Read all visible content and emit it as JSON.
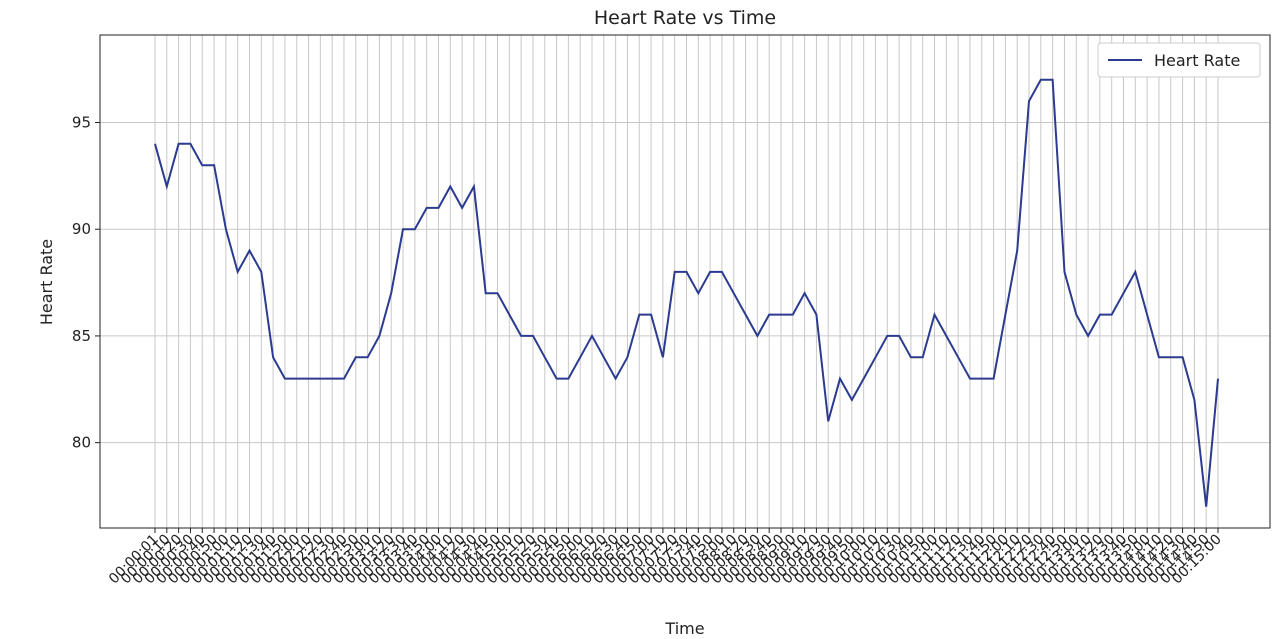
{
  "chart_data": {
    "type": "line",
    "title": "Heart Rate vs Time",
    "xlabel": "Time",
    "ylabel": "Heart Rate",
    "categories": [
      "00:00:01",
      "00:00:10",
      "00:00:20",
      "00:00:30",
      "00:00:40",
      "00:00:50",
      "00:01:00",
      "00:01:10",
      "00:01:20",
      "00:01:30",
      "00:01:40",
      "00:01:50",
      "00:02:00",
      "00:02:10",
      "00:02:20",
      "00:02:30",
      "00:02:40",
      "00:02:50",
      "00:03:00",
      "00:03:10",
      "00:03:20",
      "00:03:30",
      "00:03:40",
      "00:03:50",
      "00:04:00",
      "00:04:10",
      "00:04:20",
      "00:04:30",
      "00:04:40",
      "00:04:50",
      "00:05:00",
      "00:05:10",
      "00:05:20",
      "00:05:30",
      "00:05:40",
      "00:05:50",
      "00:06:00",
      "00:06:10",
      "00:06:20",
      "00:06:30",
      "00:06:40",
      "00:06:50",
      "00:07:00",
      "00:07:10",
      "00:07:20",
      "00:07:30",
      "00:07:40",
      "00:07:50",
      "00:08:00",
      "00:08:10",
      "00:08:20",
      "00:08:30",
      "00:08:40",
      "00:08:50",
      "00:09:00",
      "00:09:10",
      "00:09:20",
      "00:09:30",
      "00:09:40",
      "00:09:50",
      "00:10:00",
      "00:10:10",
      "00:10:20",
      "00:10:30",
      "00:10:40",
      "00:10:50",
      "00:11:00",
      "00:11:10",
      "00:11:20",
      "00:11:30",
      "00:11:40",
      "00:11:50",
      "00:12:00",
      "00:12:10",
      "00:12:20",
      "00:12:30",
      "00:12:40",
      "00:12:50",
      "00:13:00",
      "00:13:10",
      "00:13:20",
      "00:13:30",
      "00:13:40",
      "00:13:50",
      "00:14:00",
      "00:14:10",
      "00:14:20",
      "00:14:30",
      "00:14:40",
      "00:14:50",
      "00:15:00"
    ],
    "series": [
      {
        "name": "Heart Rate",
        "color": "#2b3b8f",
        "values": [
          94,
          92,
          94,
          94,
          93,
          93,
          90,
          88,
          89,
          88,
          84,
          83,
          83,
          83,
          83,
          83,
          83,
          84,
          84,
          85,
          87,
          90,
          90,
          91,
          91,
          92,
          91,
          92,
          87,
          87,
          86,
          85,
          85,
          84,
          83,
          83,
          84,
          85,
          84,
          83,
          84,
          86,
          86,
          84,
          88,
          88,
          87,
          88,
          88,
          87,
          86,
          85,
          86,
          86,
          86,
          87,
          86,
          81,
          83,
          82,
          83,
          84,
          85,
          85,
          84,
          84,
          86,
          85,
          84,
          83,
          83,
          83,
          86,
          89,
          96,
          97,
          97,
          88,
          86,
          85,
          86,
          86,
          87,
          88,
          86,
          84,
          84,
          84,
          82,
          77,
          83
        ]
      }
    ],
    "ylim": [
      76,
      99.1
    ],
    "yticks": [
      80,
      85,
      90,
      95
    ],
    "grid": true,
    "legend": "upper right"
  }
}
